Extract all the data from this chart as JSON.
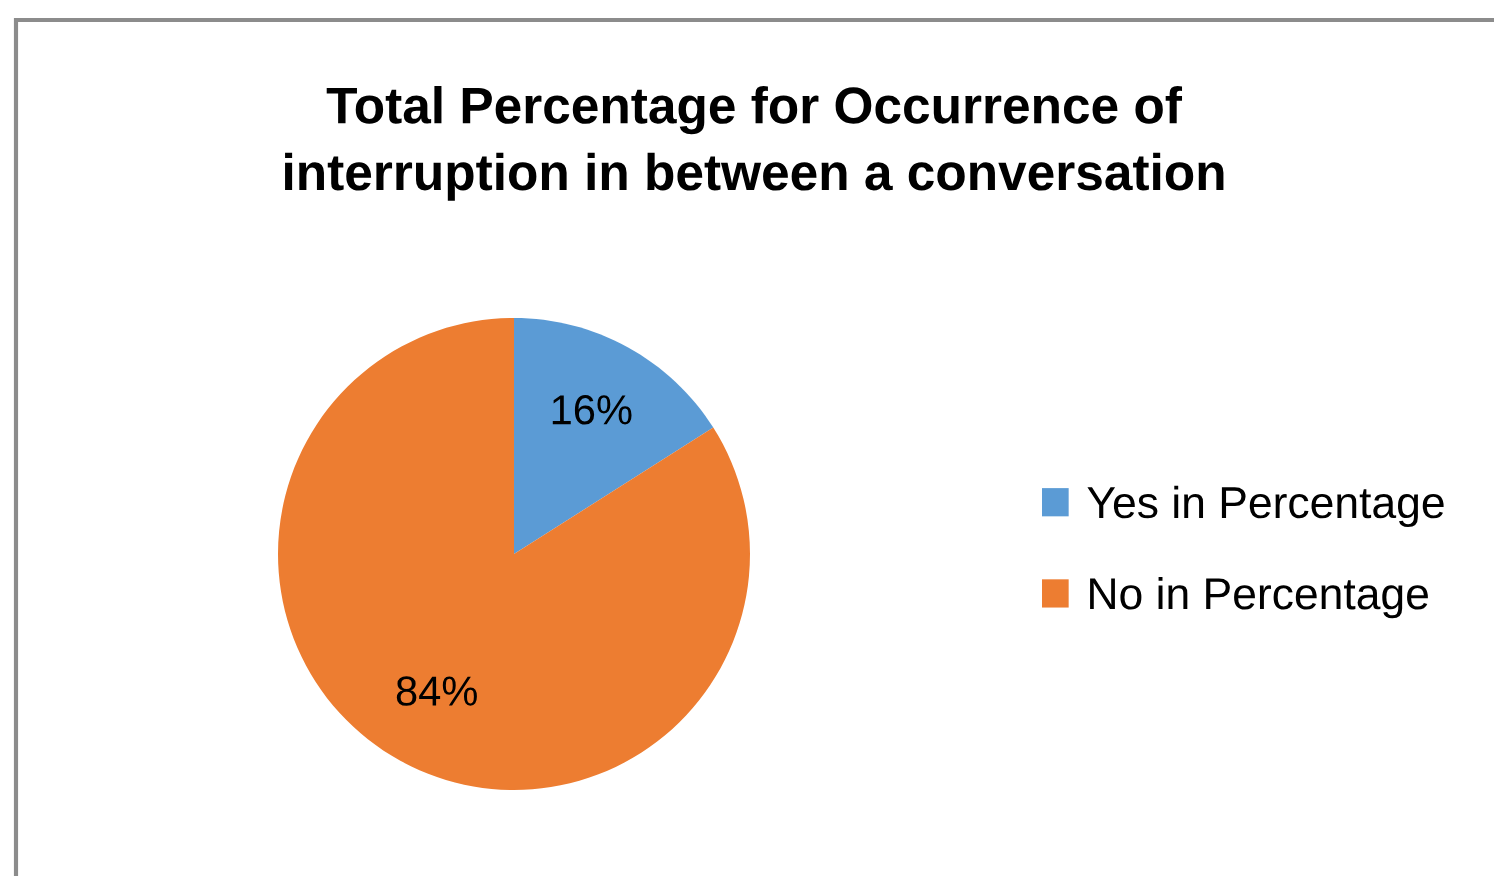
{
  "chart_data": {
    "type": "pie",
    "title": "Total Percentage for Occurrence of\ninterruption in between a conversation",
    "categories": [
      "Yes in Percentage",
      "No in Percentage"
    ],
    "values": [
      16,
      84
    ],
    "colors": [
      "#5b9bd5",
      "#ed7d31"
    ],
    "value_labels": [
      "16%",
      "84%"
    ],
    "legend": "right"
  }
}
